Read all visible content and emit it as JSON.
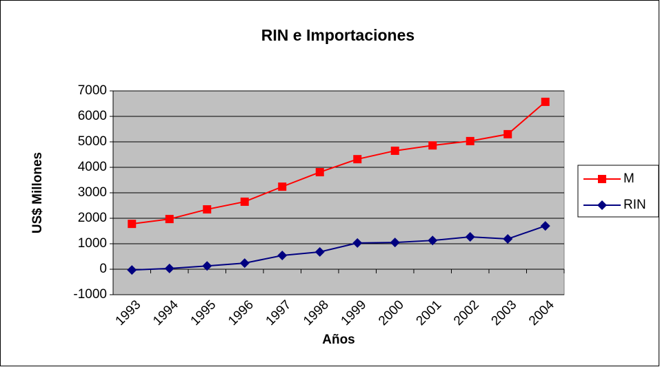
{
  "chart_data": {
    "type": "line",
    "title": "RIN e Importaciones",
    "xlabel": "Años",
    "ylabel": "US$ Millones",
    "categories": [
      "1993",
      "1994",
      "1995",
      "1996",
      "1997",
      "1998",
      "1999",
      "2000",
      "2001",
      "2002",
      "2003",
      "2004"
    ],
    "series": [
      {
        "name": "M",
        "color": "#ff0000",
        "marker": "square",
        "values": [
          1780,
          1970,
          2350,
          2650,
          3240,
          3810,
          4320,
          4650,
          4860,
          5030,
          5300,
          6570
        ]
      },
      {
        "name": "RIN",
        "color": "#000080",
        "marker": "diamond",
        "values": [
          -30,
          30,
          130,
          240,
          540,
          680,
          1030,
          1050,
          1130,
          1270,
          1190,
          1700
        ]
      }
    ],
    "ylim": [
      -1000,
      7000
    ],
    "yticks": [
      -1000,
      0,
      1000,
      2000,
      3000,
      4000,
      5000,
      6000,
      7000
    ],
    "grid": true,
    "legend": "right"
  }
}
